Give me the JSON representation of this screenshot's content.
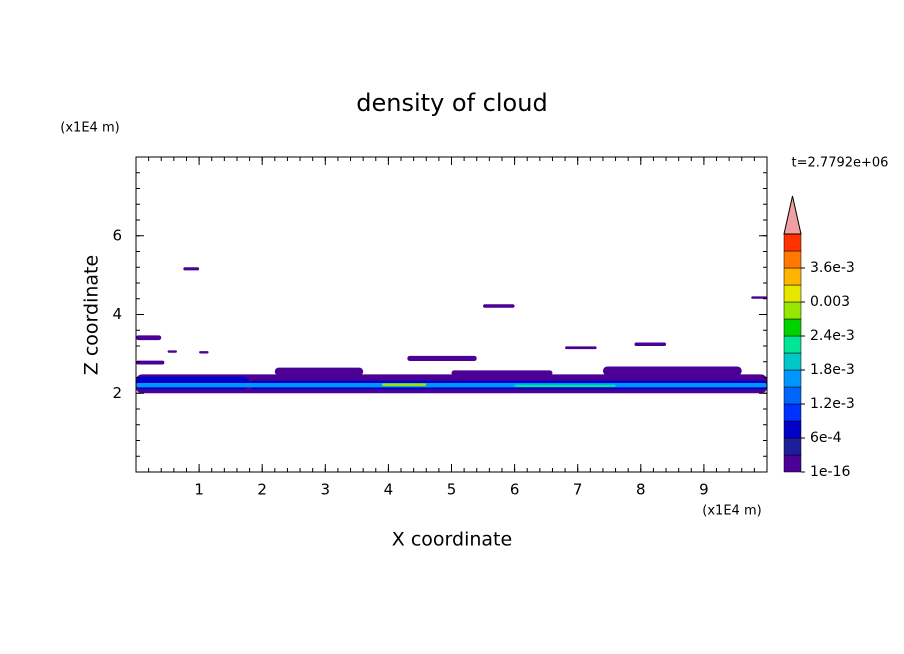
{
  "chart_data": {
    "type": "contour",
    "title": "density of cloud",
    "xlabel": "X coordinate",
    "ylabel": "Z coordinate",
    "x_unit": "(x1E4 m)",
    "y_unit": "(x1E4 m)",
    "annotation": "t=2.7792e+06",
    "xlim": [
      0,
      10
    ],
    "xticks": [
      1,
      2,
      3,
      4,
      5,
      6,
      7,
      8,
      9
    ],
    "ylim": [
      0,
      8
    ],
    "yticks": [
      2,
      4,
      6
    ],
    "colorbar": {
      "levels": [
        1e-16,
        0.0003,
        0.0006,
        0.0009,
        0.0012,
        0.0015,
        0.0018,
        0.0021,
        0.0024,
        0.0027,
        0.003,
        0.0033,
        0.0036,
        0.0039
      ],
      "colors": [
        "#4b0096",
        "#1e1e9a",
        "#0000c8",
        "#0032ff",
        "#0064ff",
        "#0096ff",
        "#00c8c8",
        "#00e696",
        "#00d200",
        "#96e600",
        "#e6e600",
        "#ffb400",
        "#ff7800",
        "#ff3200"
      ],
      "over_color": "#f0a0a0",
      "ticks": [
        {
          "value": 1e-16,
          "label": "1e-16"
        },
        {
          "value": 0.0006,
          "label": "6e-4"
        },
        {
          "value": 0.0012,
          "label": "1.2e-3"
        },
        {
          "value": 0.0018,
          "label": "1.8e-3"
        },
        {
          "value": 0.0024,
          "label": "2.4e-3"
        },
        0.003,
        {
          "value": 0.0036,
          "label": "3.6e-3"
        }
      ]
    },
    "patches": [
      {
        "x": [
          0,
          10
        ],
        "z": [
          2.0,
          2.48
        ],
        "level": 1e-16
      },
      {
        "x": [
          2.2,
          3.6
        ],
        "z": [
          2.45,
          2.65
        ],
        "level": 1e-16
      },
      {
        "x": [
          5.0,
          6.6
        ],
        "z": [
          2.45,
          2.58
        ],
        "level": 1e-16
      },
      {
        "x": [
          7.4,
          9.6
        ],
        "z": [
          2.45,
          2.68
        ],
        "level": 1e-16
      },
      {
        "x": [
          0,
          1.8
        ],
        "z": [
          2.1,
          2.42
        ],
        "level": 0.0006
      },
      {
        "x": [
          1.8,
          10
        ],
        "z": [
          2.1,
          2.32
        ],
        "level": 0.0006
      },
      {
        "x": [
          0,
          10
        ],
        "z": [
          2.15,
          2.26
        ],
        "level": 0.0015
      },
      {
        "x": [
          3.9,
          4.6
        ],
        "z": [
          2.18,
          2.25
        ],
        "level": 0.0027
      },
      {
        "x": [
          6.0,
          7.6
        ],
        "z": [
          2.16,
          2.22
        ],
        "level": 0.0021
      },
      {
        "x": [
          0.75,
          1.0
        ],
        "z": [
          5.12,
          5.2
        ],
        "level": 1e-16
      },
      {
        "x": [
          5.5,
          6.0
        ],
        "z": [
          4.17,
          4.26
        ],
        "level": 1e-16
      },
      {
        "x": [
          0,
          0.4
        ],
        "z": [
          3.35,
          3.47
        ],
        "level": 1e-16
      },
      {
        "x": [
          0,
          0.45
        ],
        "z": [
          2.73,
          2.83
        ],
        "level": 1e-16
      },
      {
        "x": [
          0.5,
          0.65
        ],
        "z": [
          3.03,
          3.09
        ],
        "level": 1e-16
      },
      {
        "x": [
          1.0,
          1.15
        ],
        "z": [
          3.01,
          3.07
        ],
        "level": 1e-16
      },
      {
        "x": [
          4.3,
          5.4
        ],
        "z": [
          2.82,
          2.95
        ],
        "level": 1e-16
      },
      {
        "x": [
          7.9,
          8.4
        ],
        "z": [
          3.2,
          3.29
        ],
        "level": 1e-16
      },
      {
        "x": [
          6.8,
          7.3
        ],
        "z": [
          3.12,
          3.19
        ],
        "level": 1e-16
      },
      {
        "x": [
          9.75,
          10
        ],
        "z": [
          4.4,
          4.46
        ],
        "level": 1e-16
      }
    ]
  }
}
